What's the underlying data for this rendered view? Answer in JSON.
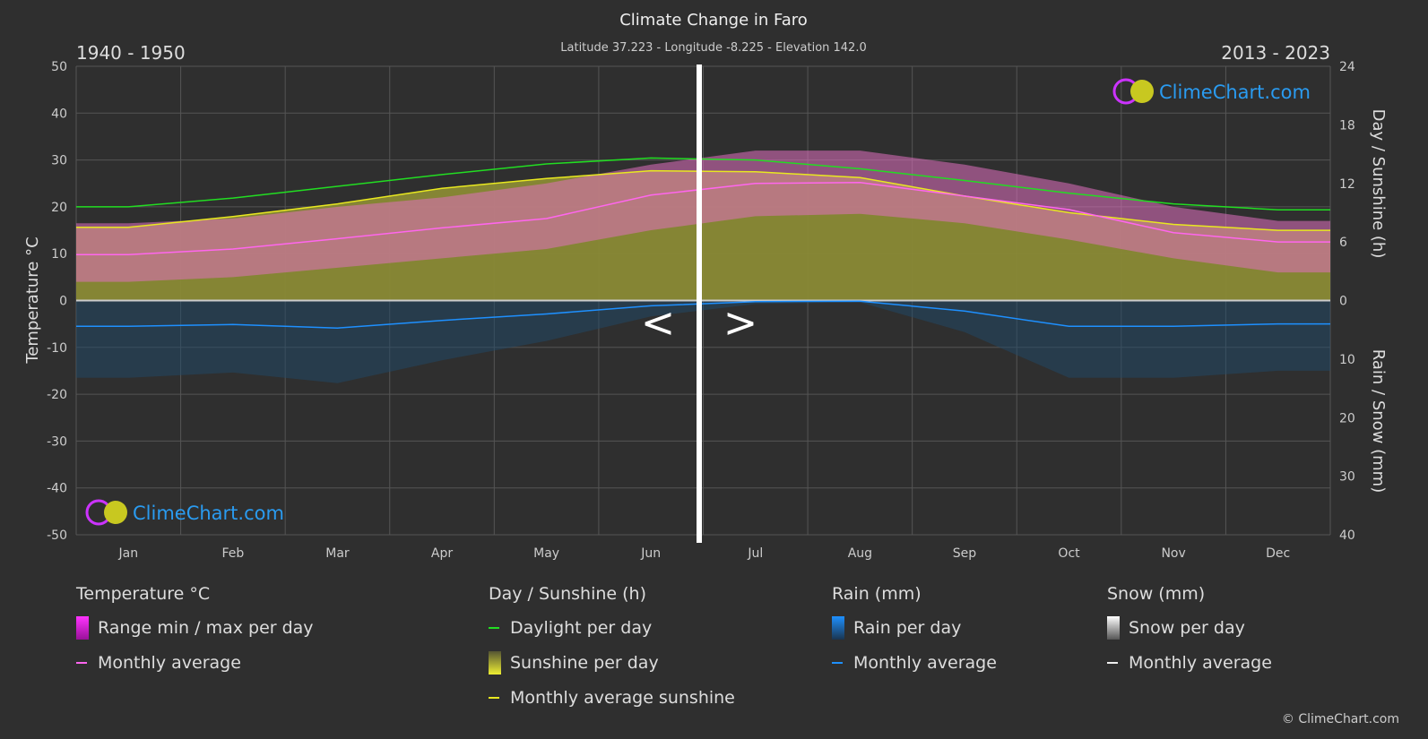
{
  "chart_data": {
    "type": "area",
    "title": "Climate Change in Faro",
    "subtitle": "Latitude 37.223 - Longitude -8.225 - Elevation 142.0",
    "period_left": "1940 - 1950",
    "period_right": "2013 - 2023",
    "ylabel_left": "Temperature °C",
    "ylabel_right_top": "Day / Sunshine (h)",
    "ylabel_right_bottom": "Rain / Snow (mm)",
    "ylim_left": [
      -50,
      50
    ],
    "yticks_left": [
      "50",
      "40",
      "30",
      "20",
      "10",
      "0",
      "-10",
      "-20",
      "-30",
      "-40",
      "-50"
    ],
    "yticks_right_top": [
      "24",
      "18",
      "12",
      "6",
      "0"
    ],
    "yticks_right_bottom": [
      "10",
      "20",
      "30",
      "40"
    ],
    "ylim_sunshine": [
      0,
      24
    ],
    "ylim_rain": [
      0,
      40
    ],
    "grid": true,
    "categories": [
      "Jan",
      "Feb",
      "Mar",
      "Apr",
      "May",
      "Jun",
      "Jul",
      "Aug",
      "Sep",
      "Oct",
      "Nov",
      "Dec"
    ],
    "series": [
      {
        "name": "Monthly average",
        "group": "temperature",
        "color": "#ff66ee",
        "values": [
          9.8,
          11.0,
          13.2,
          15.5,
          17.5,
          22.5,
          25.0,
          25.2,
          22.3,
          19.4,
          14.5,
          12.5
        ]
      },
      {
        "name": "Range min / max per day",
        "group": "temperature",
        "color": "#cc33cc",
        "min": [
          4,
          5,
          7,
          9,
          11,
          15,
          18,
          18.5,
          16.5,
          13,
          9,
          6
        ],
        "max": [
          16.5,
          17.5,
          20,
          22,
          25,
          29,
          32,
          32,
          29,
          25,
          20,
          17
        ]
      },
      {
        "name": "Daylight per day",
        "group": "sunshine",
        "color": "#22dd22",
        "values": [
          9.6,
          10.5,
          11.7,
          12.9,
          14.0,
          14.6,
          14.4,
          13.5,
          12.3,
          11.0,
          9.9,
          9.3
        ]
      },
      {
        "name": "Monthly average sunshine",
        "group": "sunshine",
        "color": "#e8e820",
        "values": [
          7.5,
          8.6,
          9.9,
          11.5,
          12.5,
          13.3,
          13.2,
          12.6,
          10.7,
          9.0,
          7.8,
          7.2
        ]
      },
      {
        "name": "Monthly average",
        "group": "rain",
        "color": "#1e90ff",
        "values": [
          4.4,
          4.1,
          4.7,
          3.4,
          2.3,
          0.9,
          0.2,
          0.1,
          1.8,
          4.4,
          4.4,
          4.0
        ]
      }
    ],
    "divider_arrows": [
      "<",
      ">"
    ]
  },
  "logo_text": "ClimeChart.com",
  "legend": {
    "temperature": {
      "title": "Temperature °C",
      "items": [
        "Range min / max per day",
        "Monthly average"
      ]
    },
    "sunshine": {
      "title": "Day / Sunshine (h)",
      "items": [
        "Daylight per day",
        "Sunshine per day",
        "Monthly average sunshine"
      ]
    },
    "rain": {
      "title": "Rain (mm)",
      "items": [
        "Rain per day",
        "Monthly average"
      ]
    },
    "snow": {
      "title": "Snow (mm)",
      "items": [
        "Snow per day",
        "Monthly average"
      ]
    }
  },
  "copyright": "© ClimeChart.com"
}
